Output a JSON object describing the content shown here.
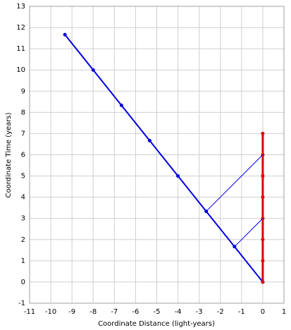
{
  "chart_data": {
    "type": "line",
    "x_label": "Coordinate Distance (light-years)",
    "y_label": "Coordinate Time (years)",
    "xlim": [
      -11,
      1
    ],
    "xticks": [
      -11,
      -10,
      -9,
      -8,
      -7,
      -6,
      -5,
      -4,
      -3,
      -2,
      -1,
      0,
      1
    ],
    "ylim": [
      -1,
      13
    ],
    "yticks": [
      -1,
      0,
      1,
      2,
      3,
      4,
      5,
      6,
      7,
      8,
      9,
      10,
      11,
      12,
      13
    ],
    "grid": true,
    "series": [
      {
        "color": "#0000e0",
        "line_width": 2,
        "markers": true,
        "x": [
          0,
          -1.333,
          -2.667,
          -4,
          -5.333,
          -6.667,
          -8,
          -9.333
        ],
        "values": [
          0,
          1.667,
          3.333,
          5,
          6.667,
          8.333,
          10,
          11.667
        ]
      },
      {
        "color": "#e00000",
        "line_width": 3,
        "markers": true,
        "x": [
          0,
          0,
          0,
          0,
          0,
          0,
          0,
          0
        ],
        "values": [
          0,
          1,
          2,
          3,
          4,
          5,
          6,
          7
        ]
      },
      {
        "color": "#0000e0",
        "line_width": 1,
        "markers": false,
        "x": [
          -1.333,
          0
        ],
        "values": [
          1.667,
          3
        ]
      },
      {
        "color": "#0000e0",
        "line_width": 1,
        "markers": false,
        "x": [
          -2.667,
          0
        ],
        "values": [
          3.333,
          6
        ]
      }
    ]
  }
}
